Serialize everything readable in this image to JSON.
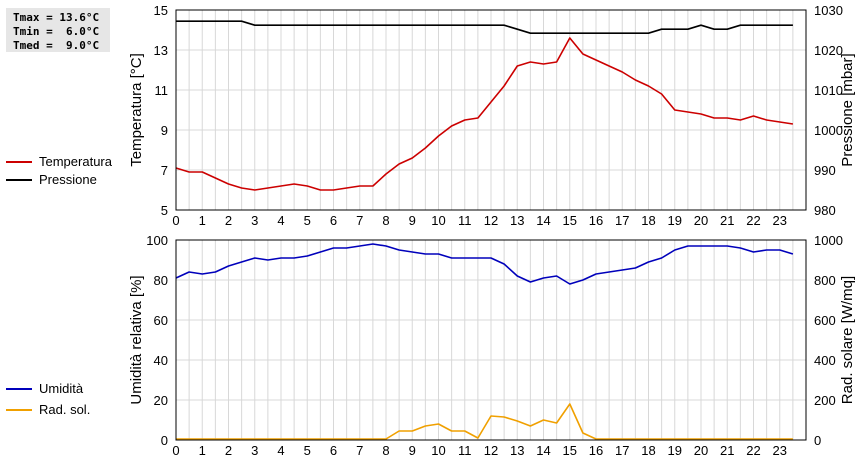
{
  "stats": {
    "tmax": "Tmax = 13.6°C",
    "tmin": "Tmin =  6.0°C",
    "tmed": "Tmed =  9.0°C"
  },
  "legend_top": [
    {
      "label": "Temperatura",
      "color": "#cc0000"
    },
    {
      "label": "Pressione",
      "color": "#000000"
    }
  ],
  "legend_bottom": [
    {
      "label": "Umidità",
      "color": "#0000bb"
    },
    {
      "label": "Rad. sol.",
      "color": "#f0a000"
    }
  ],
  "chart_data": [
    {
      "type": "line",
      "xlabel": "",
      "ylabel": "Temperatura [°C]",
      "y2label": "Pressione [mbar]",
      "xlim": [
        0,
        24
      ],
      "ylim": [
        5,
        15
      ],
      "y2lim": [
        980,
        1030
      ],
      "xticks": [
        "0",
        "1",
        "2",
        "3",
        "4",
        "5",
        "6",
        "7",
        "8",
        "9",
        "10",
        "11",
        "12",
        "13",
        "14",
        "15",
        "16",
        "17",
        "18",
        "19",
        "20",
        "21",
        "22",
        "23"
      ],
      "yticks": [
        "5",
        "7",
        "9",
        "11",
        "13",
        "15"
      ],
      "y2ticks": [
        "980",
        "990",
        "1000",
        "1010",
        "1020",
        "1030"
      ],
      "grid": true,
      "series": [
        {
          "name": "Temperatura",
          "axis": "left",
          "color": "#cc0000",
          "x": [
            0,
            0.5,
            1,
            1.5,
            2,
            2.5,
            3,
            3.5,
            4,
            4.5,
            5,
            5.5,
            6,
            6.5,
            7,
            7.5,
            8,
            8.5,
            9,
            9.5,
            10,
            10.5,
            11,
            11.5,
            12,
            12.5,
            13,
            13.5,
            14,
            14.5,
            15,
            15.5,
            16,
            16.5,
            17,
            17.5,
            18,
            18.5,
            19,
            19.5,
            20,
            20.5,
            21,
            21.5,
            22,
            22.5,
            23,
            23.5
          ],
          "values": [
            7.1,
            6.9,
            6.9,
            6.6,
            6.3,
            6.1,
            6.0,
            6.1,
            6.2,
            6.3,
            6.2,
            6.0,
            6.0,
            6.1,
            6.2,
            6.2,
            6.8,
            7.3,
            7.6,
            8.1,
            8.7,
            9.2,
            9.5,
            9.6,
            10.4,
            11.2,
            12.2,
            12.4,
            12.3,
            12.4,
            13.6,
            12.8,
            12.5,
            12.2,
            11.9,
            11.5,
            11.2,
            10.8,
            10.0,
            9.9,
            9.8,
            9.6,
            9.6,
            9.5,
            9.7,
            9.5,
            9.4,
            9.3
          ]
        },
        {
          "name": "Pressione",
          "axis": "right",
          "color": "#000000",
          "x": [
            0,
            0.5,
            1,
            1.5,
            2,
            2.5,
            3,
            3.5,
            4,
            4.5,
            5,
            5.5,
            6,
            6.5,
            7,
            7.5,
            8,
            8.5,
            9,
            9.5,
            10,
            10.5,
            11,
            11.5,
            12,
            12.5,
            13,
            13.5,
            14,
            14.5,
            15,
            15.5,
            16,
            16.5,
            17,
            17.5,
            18,
            18.5,
            19,
            19.5,
            20,
            20.5,
            21,
            21.5,
            22,
            22.5,
            23,
            23.5
          ],
          "values": [
            1027.2,
            1027.2,
            1027.2,
            1027.2,
            1027.2,
            1027.2,
            1026.2,
            1026.2,
            1026.2,
            1026.2,
            1026.2,
            1026.2,
            1026.2,
            1026.2,
            1026.2,
            1026.2,
            1026.2,
            1026.2,
            1026.2,
            1026.2,
            1026.2,
            1026.2,
            1026.2,
            1026.2,
            1026.2,
            1026.2,
            1025.2,
            1024.2,
            1024.2,
            1024.2,
            1024.2,
            1024.2,
            1024.2,
            1024.2,
            1024.2,
            1024.2,
            1024.2,
            1025.2,
            1025.2,
            1025.2,
            1026.2,
            1025.2,
            1025.2,
            1026.2,
            1026.2,
            1026.2,
            1026.2,
            1026.2
          ]
        }
      ]
    },
    {
      "type": "line",
      "xlabel": "",
      "ylabel": "Umidità relativa [%]",
      "y2label": "Rad. solare [W/mq]",
      "xlim": [
        0,
        24
      ],
      "ylim": [
        0,
        100
      ],
      "y2lim": [
        0,
        1000
      ],
      "xticks": [
        "0",
        "1",
        "2",
        "3",
        "4",
        "5",
        "6",
        "7",
        "8",
        "9",
        "10",
        "11",
        "12",
        "13",
        "14",
        "15",
        "16",
        "17",
        "18",
        "19",
        "20",
        "21",
        "22",
        "23"
      ],
      "yticks": [
        "0",
        "20",
        "40",
        "60",
        "80",
        "100"
      ],
      "y2ticks": [
        "0",
        "200",
        "400",
        "600",
        "800",
        "1000"
      ],
      "grid": true,
      "series": [
        {
          "name": "Umidità",
          "axis": "left",
          "color": "#0000bb",
          "x": [
            0,
            0.5,
            1,
            1.5,
            2,
            2.5,
            3,
            3.5,
            4,
            4.5,
            5,
            5.5,
            6,
            6.5,
            7,
            7.5,
            8,
            8.5,
            9,
            9.5,
            10,
            10.5,
            11,
            11.5,
            12,
            12.5,
            13,
            13.5,
            14,
            14.5,
            15,
            15.5,
            16,
            16.5,
            17,
            17.5,
            18,
            18.5,
            19,
            19.5,
            20,
            20.5,
            21,
            21.5,
            22,
            22.5,
            23,
            23.5
          ],
          "values": [
            81,
            84,
            83,
            84,
            87,
            89,
            91,
            90,
            91,
            91,
            92,
            94,
            96,
            96,
            97,
            98,
            97,
            95,
            94,
            93,
            93,
            91,
            91,
            91,
            91,
            88,
            82,
            79,
            81,
            82,
            78,
            80,
            83,
            84,
            85,
            86,
            89,
            91,
            95,
            97,
            97,
            97,
            97,
            96,
            94,
            95,
            95,
            93
          ]
        },
        {
          "name": "Rad. sol.",
          "axis": "right",
          "color": "#f0a000",
          "x": [
            0,
            0.5,
            1,
            1.5,
            2,
            2.5,
            3,
            3.5,
            4,
            4.5,
            5,
            5.5,
            6,
            6.5,
            7,
            7.5,
            8,
            8.5,
            9,
            9.5,
            10,
            10.5,
            11,
            11.5,
            12,
            12.5,
            13,
            13.5,
            14,
            14.5,
            15,
            15.5,
            16,
            16.5,
            17,
            17.5,
            18,
            18.5,
            19,
            19.5,
            20,
            20.5,
            21,
            21.5,
            22,
            22.5,
            23,
            23.5
          ],
          "values": [
            5,
            5,
            5,
            5,
            5,
            5,
            5,
            5,
            5,
            5,
            5,
            5,
            5,
            5,
            5,
            5,
            5,
            45,
            45,
            70,
            80,
            45,
            45,
            10,
            120,
            115,
            95,
            70,
            100,
            85,
            180,
            35,
            5,
            5,
            5,
            5,
            5,
            5,
            5,
            5,
            5,
            5,
            5,
            5,
            5,
            5,
            5,
            5
          ]
        }
      ]
    }
  ]
}
